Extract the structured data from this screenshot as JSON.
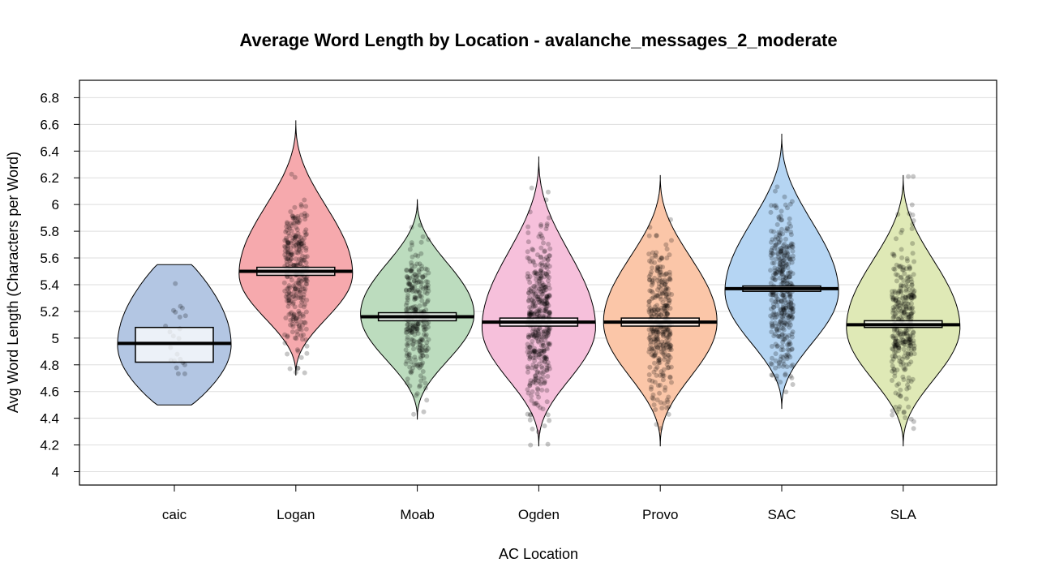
{
  "chart_data": {
    "type": "violin",
    "title": "Average Word Length by Location - avalanche_messages_2_moderate",
    "xlabel": "AC Location",
    "ylabel": "Avg Word Length (Characters per Word)",
    "ylim": [
      3.9,
      6.93
    ],
    "y_ticks": [
      "4",
      "4.2",
      "4.4",
      "4.6",
      "4.8",
      "5",
      "5.2",
      "5.4",
      "5.6",
      "5.8",
      "6",
      "6.2",
      "6.4",
      "6.6",
      "6.8"
    ],
    "grid": true,
    "legend": "none",
    "categories": [
      "caic",
      "Logan",
      "Moab",
      "Ogden",
      "Provo",
      "SAC",
      "SLA"
    ],
    "series": [
      {
        "category": "caic",
        "color": "#b3c6e3",
        "min": 4.5,
        "max": 5.55,
        "mode": 4.95,
        "mean": 4.96,
        "ci": [
          4.82,
          5.08
        ],
        "n": 22
      },
      {
        "category": "Logan",
        "color": "#f6a9ad",
        "min": 4.72,
        "max": 6.63,
        "mode": 5.48,
        "mean": 5.5,
        "ci": [
          5.47,
          5.53
        ],
        "n": 300
      },
      {
        "category": "Moab",
        "color": "#bcdcbe",
        "min": 4.39,
        "max": 6.04,
        "mode": 5.18,
        "mean": 5.16,
        "ci": [
          5.13,
          5.19
        ],
        "n": 300
      },
      {
        "category": "Ogden",
        "color": "#f6c0db",
        "min": 4.19,
        "max": 6.36,
        "mode": 5.08,
        "mean": 5.12,
        "ci": [
          5.09,
          5.15
        ],
        "n": 420
      },
      {
        "category": "Provo",
        "color": "#fbc6a8",
        "min": 4.19,
        "max": 6.22,
        "mode": 5.12,
        "mean": 5.12,
        "ci": [
          5.09,
          5.15
        ],
        "n": 330
      },
      {
        "category": "SAC",
        "color": "#b5d5f3",
        "min": 4.47,
        "max": 6.53,
        "mode": 5.35,
        "mean": 5.37,
        "ci": [
          5.35,
          5.39
        ],
        "n": 380
      },
      {
        "category": "SLA",
        "color": "#dfe9b6",
        "min": 4.19,
        "max": 6.22,
        "mode": 5.08,
        "mean": 5.1,
        "ci": [
          5.08,
          5.13
        ],
        "n": 330
      }
    ]
  }
}
